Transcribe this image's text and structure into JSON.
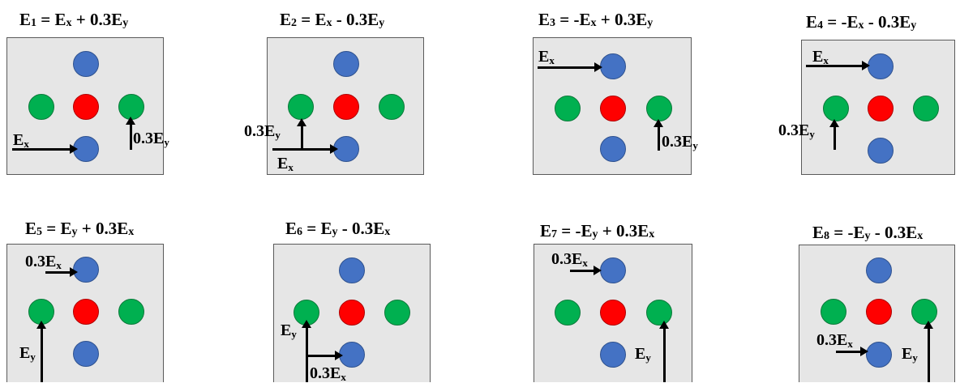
{
  "panels": [
    {
      "title": {
        "main": "E",
        "sub": "1",
        "rest": " = E",
        "sub2": "x",
        "rest2": " + 0.3E",
        "sub3": "y"
      },
      "labels": {
        "a": {
          "main": "E",
          "sub": "x"
        },
        "b": {
          "main": "0.3E",
          "sub": "y"
        }
      }
    },
    {
      "title": {
        "main": "E",
        "sub": "2",
        "rest": " = E",
        "sub2": "x",
        "rest2": " - 0.3E",
        "sub3": "y"
      },
      "labels": {
        "a": {
          "main": "0.3E",
          "sub": "y"
        },
        "b": {
          "main": "E",
          "sub": "x"
        }
      }
    },
    {
      "title": {
        "main": "E",
        "sub": "3",
        "rest": " = -E",
        "sub2": "x",
        "rest2": " + 0.3E",
        "sub3": "y"
      },
      "labels": {
        "a": {
          "main": "E",
          "sub": "x"
        },
        "b": {
          "main": "0.3E",
          "sub": "y"
        }
      }
    },
    {
      "title": {
        "main": "E",
        "sub": "4",
        "rest": " = -E",
        "sub2": "x",
        "rest2": " - 0.3E",
        "sub3": "y"
      },
      "labels": {
        "a": {
          "main": "E",
          "sub": "x"
        },
        "b": {
          "main": "0.3E",
          "sub": "y"
        }
      }
    },
    {
      "title": {
        "main": "E",
        "sub": "5",
        "rest": " = E",
        "sub2": "y",
        "rest2": " + 0.3E",
        "sub3": "x"
      },
      "labels": {
        "a": {
          "main": "0.3E",
          "sub": "x"
        },
        "b": {
          "main": "E",
          "sub": "y"
        }
      }
    },
    {
      "title": {
        "main": "E",
        "sub": "6",
        "rest": " = E",
        "sub2": "y",
        "rest2": " - 0.3E",
        "sub3": "x"
      },
      "labels": {
        "a": {
          "main": "E",
          "sub": "y"
        },
        "b": {
          "main": "0.3E",
          "sub": "x"
        }
      }
    },
    {
      "title": {
        "main": "E",
        "sub": "7",
        "rest": " = -E",
        "sub2": "y",
        "rest2": " + 0.3E",
        "sub3": "x"
      },
      "labels": {
        "a": {
          "main": "0.3E",
          "sub": "x"
        },
        "b": {
          "main": "E",
          "sub": "y"
        }
      }
    },
    {
      "title": {
        "main": "E",
        "sub": "8",
        "rest": " = -E",
        "sub2": "y",
        "rest2": " - 0.3E",
        "sub3": "x"
      },
      "labels": {
        "a": {
          "main": "0.3E",
          "sub": "x"
        },
        "b": {
          "main": "E",
          "sub": "y"
        }
      }
    }
  ],
  "colors": {
    "blue": "#4472c4",
    "red": "#ff0000",
    "green": "#00b050",
    "box": "#e6e6e6"
  }
}
